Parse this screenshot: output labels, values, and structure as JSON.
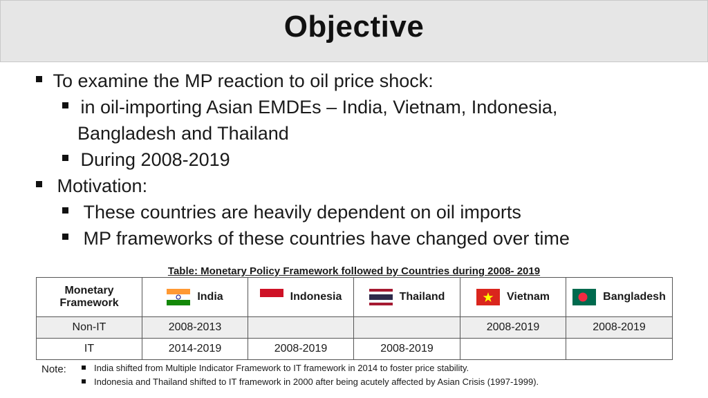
{
  "title": "Objective",
  "bullets": {
    "b1": "To examine the MP reaction to oil price shock:",
    "b1a_line1": "in oil-importing Asian EMDEs – India, Vietnam, Indonesia,",
    "b1a_line2": "Bangladesh and Thailand",
    "b1b": "During 2008-2019",
    "b2": "Motivation:",
    "b2a": "These countries are heavily dependent on oil imports",
    "b2b": "MP frameworks of these countries have changed over time"
  },
  "table": {
    "caption": "Table: Monetary Policy Framework followed by Countries during 2008- 2019",
    "header_col0_line1": "Monetary",
    "header_col0_line2": "Framework",
    "countries": [
      "India",
      "Indonesia",
      "Thailand",
      "Vietnam",
      "Bangladesh"
    ],
    "rows": [
      {
        "label": "Non-IT",
        "cells": [
          "2008-2013",
          "",
          "",
          "2008-2019",
          "2008-2019"
        ]
      },
      {
        "label": "IT",
        "cells": [
          "2014-2019",
          "2008-2019",
          "2008-2019",
          "",
          ""
        ]
      }
    ]
  },
  "notes": {
    "label": "Note:",
    "items": [
      "India shifted from Multiple Indicator Framework to IT framework in 2014 to foster price stability.",
      "Indonesia and Thailand shifted to IT framework in 2000 after being acutely affected by Asian Crisis (1997-1999)."
    ]
  },
  "flags": {
    "india": [
      "#ff9933",
      "#ffffff",
      "#138808",
      "#000080"
    ],
    "indonesia": [
      "#ce1126",
      "#ffffff"
    ],
    "thailand": [
      "#a51931",
      "#f4f5f8",
      "#2d2a4a"
    ],
    "vietnam": [
      "#da251d",
      "#ffff00"
    ],
    "bangladesh": [
      "#006a4e",
      "#f42a41"
    ]
  }
}
